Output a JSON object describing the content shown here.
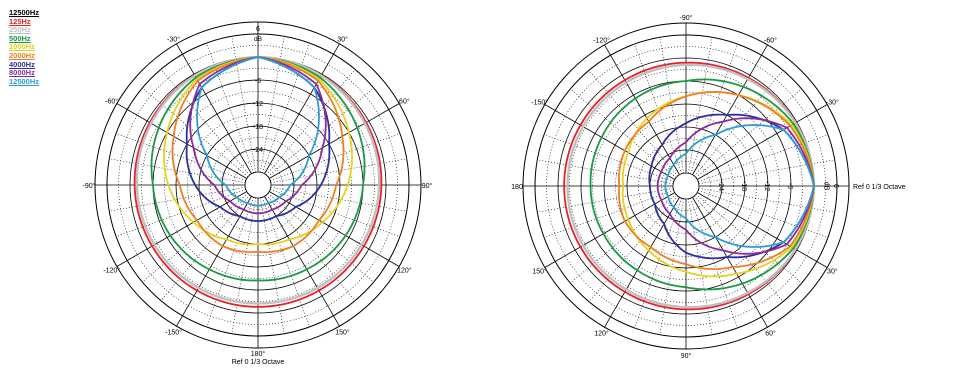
{
  "legend": {
    "title": "12500Hz",
    "entries": [
      {
        "label": "125Hz",
        "color": "#e8202a"
      },
      {
        "label": "250Hz",
        "color": "#c0c0c0"
      },
      {
        "label": "500Hz",
        "color": "#1a9a44"
      },
      {
        "label": "1000Hz",
        "color": "#e6d21c"
      },
      {
        "label": "2000Hz",
        "color": "#f07f22"
      },
      {
        "label": "4000Hz",
        "color": "#2c2f9a"
      },
      {
        "label": "8000Hz",
        "color": "#8e2a9c"
      },
      {
        "label": "12500Hz",
        "color": "#2a9fd6"
      }
    ]
  },
  "chart_data": [
    {
      "type": "polar",
      "orientation": "front-up",
      "rlim": [
        -30,
        6
      ],
      "radial_ticks": [
        "6",
        "dB",
        "-6",
        "-12",
        "-18",
        "-24"
      ],
      "angle_labels": [
        "0°",
        "30°",
        "60°",
        "90°",
        "120°",
        "150°",
        "180°",
        "-150°",
        "-120°",
        "-90°",
        "-60°",
        "-30°"
      ],
      "bottom_labels": {
        "line1": "180°",
        "line2": "Ref 0   1/3 Octave"
      },
      "top_label": "6",
      "grid": true,
      "series": [
        {
          "name": "125Hz",
          "angles": [
            0,
            30,
            60,
            90,
            120,
            150,
            180,
            210,
            240,
            270,
            300,
            330
          ],
          "db": [
            0,
            -0.3,
            -0.8,
            -1.2,
            -1.5,
            -1.6,
            -1.6,
            -1.6,
            -1.5,
            -1.2,
            -0.8,
            -0.3
          ]
        },
        {
          "name": "250Hz",
          "angles": [
            0,
            30,
            60,
            90,
            120,
            150,
            180,
            210,
            240,
            270,
            300,
            330
          ],
          "db": [
            0,
            -0.4,
            -1.2,
            -1.8,
            -2.2,
            -2.4,
            -2.5,
            -2.4,
            -2.2,
            -1.8,
            -1.2,
            -0.4
          ]
        },
        {
          "name": "500Hz",
          "angles": [
            0,
            30,
            60,
            90,
            120,
            150,
            180,
            210,
            240,
            270,
            300,
            330
          ],
          "db": [
            0,
            -1,
            -3.5,
            -6,
            -7,
            -8,
            -8.5,
            -8,
            -7,
            -6,
            -3.5,
            -1
          ]
        },
        {
          "name": "1000Hz",
          "angles": [
            0,
            30,
            60,
            90,
            120,
            150,
            180,
            210,
            240,
            270,
            300,
            330
          ],
          "db": [
            0,
            -1.5,
            -6,
            -10,
            -14,
            -17,
            -18,
            -17,
            -14,
            -10,
            -6,
            -1.5
          ]
        },
        {
          "name": "2000Hz",
          "angles": [
            0,
            30,
            60,
            90,
            120,
            150,
            180,
            210,
            240,
            270,
            300,
            330
          ],
          "db": [
            0,
            -2,
            -8,
            -13,
            -15,
            -15,
            -16,
            -15,
            -15,
            -13,
            -8,
            -2
          ]
        },
        {
          "name": "4000Hz",
          "angles": [
            0,
            30,
            60,
            90,
            120,
            150,
            180,
            210,
            240,
            270,
            300,
            330
          ],
          "db": [
            0,
            -4,
            -12,
            -17,
            -22,
            -24,
            -24,
            -24,
            -22,
            -17,
            -12,
            -4
          ]
        },
        {
          "name": "8000Hz",
          "angles": [
            0,
            30,
            60,
            90,
            120,
            150,
            180,
            210,
            240,
            270,
            300,
            330
          ],
          "db": [
            0,
            -3,
            -14,
            -22,
            -25,
            -26,
            -26,
            -26,
            -25,
            -22,
            -14,
            -3
          ]
        },
        {
          "name": "12500Hz",
          "angles": [
            0,
            30,
            60,
            90,
            120,
            150,
            180,
            210,
            240,
            270,
            300,
            330
          ],
          "db": [
            0,
            -4,
            -18,
            -25,
            -27,
            -28,
            -28,
            -28,
            -27,
            -25,
            -18,
            -4
          ]
        }
      ]
    },
    {
      "type": "polar",
      "orientation": "front-right",
      "rlim": [
        -30,
        6
      ],
      "radial_ticks": [
        "6",
        "dB",
        "-6",
        "-12",
        "-18",
        "-24"
      ],
      "angle_labels": [
        "-90°",
        "-60°",
        "-30°",
        "30°",
        "60°",
        "90°",
        "120°",
        "150°",
        "180",
        "-150°",
        "-120°"
      ],
      "right_label": "Ref 0   1/3 Octave",
      "grid": true,
      "series": [
        {
          "name": "125Hz",
          "angles": [
            0,
            30,
            60,
            90,
            120,
            150,
            180,
            210,
            240,
            270,
            300,
            330
          ],
          "db": [
            0,
            -0.3,
            -0.8,
            -1.2,
            -1.5,
            -1.6,
            -1.6,
            -1.6,
            -1.5,
            -1.2,
            -0.8,
            -0.3
          ]
        },
        {
          "name": "250Hz",
          "angles": [
            0,
            30,
            60,
            90,
            120,
            150,
            180,
            210,
            240,
            270,
            300,
            330
          ],
          "db": [
            0,
            -0.4,
            -1.2,
            -1.8,
            -2.2,
            -2.4,
            -2.5,
            -2.4,
            -2.2,
            -1.8,
            -1.2,
            -0.4
          ]
        },
        {
          "name": "500Hz",
          "angles": [
            0,
            30,
            60,
            90,
            120,
            150,
            180,
            210,
            240,
            270,
            300,
            330
          ],
          "db": [
            0,
            -1,
            -4,
            -7,
            -8,
            -8.5,
            -8.5,
            -8,
            -7,
            -6,
            -3.5,
            -1
          ]
        },
        {
          "name": "1000Hz",
          "angles": [
            0,
            30,
            60,
            90,
            120,
            150,
            180,
            210,
            240,
            270,
            300,
            330
          ],
          "db": [
            0,
            -1.5,
            -7,
            -11,
            -14,
            -16,
            -17,
            -16,
            -13,
            -10,
            -6,
            -1.5
          ]
        },
        {
          "name": "2000Hz",
          "angles": [
            0,
            30,
            60,
            90,
            120,
            150,
            180,
            210,
            240,
            270,
            300,
            330
          ],
          "db": [
            0,
            -2,
            -9,
            -13,
            -15,
            -15,
            -16,
            -15,
            -14,
            -10,
            -6,
            -2
          ]
        },
        {
          "name": "4000Hz",
          "angles": [
            0,
            30,
            60,
            90,
            120,
            150,
            180,
            210,
            240,
            270,
            300,
            330
          ],
          "db": [
            0,
            -4,
            -12,
            -16,
            -22,
            -24,
            -24,
            -23,
            -21,
            -17,
            -12,
            -4
          ]
        },
        {
          "name": "8000Hz",
          "angles": [
            0,
            30,
            60,
            90,
            120,
            150,
            180,
            210,
            240,
            270,
            300,
            330
          ],
          "db": [
            0,
            -3,
            -14,
            -22,
            -25,
            -26,
            -26,
            -26,
            -25,
            -22,
            -14,
            -3
          ]
        },
        {
          "name": "12500Hz",
          "angles": [
            0,
            30,
            60,
            90,
            120,
            150,
            180,
            210,
            240,
            270,
            300,
            330
          ],
          "db": [
            0,
            -4,
            -18,
            -25,
            -27,
            -28,
            -28,
            -28,
            -27,
            -25,
            -18,
            -4
          ]
        }
      ]
    }
  ]
}
